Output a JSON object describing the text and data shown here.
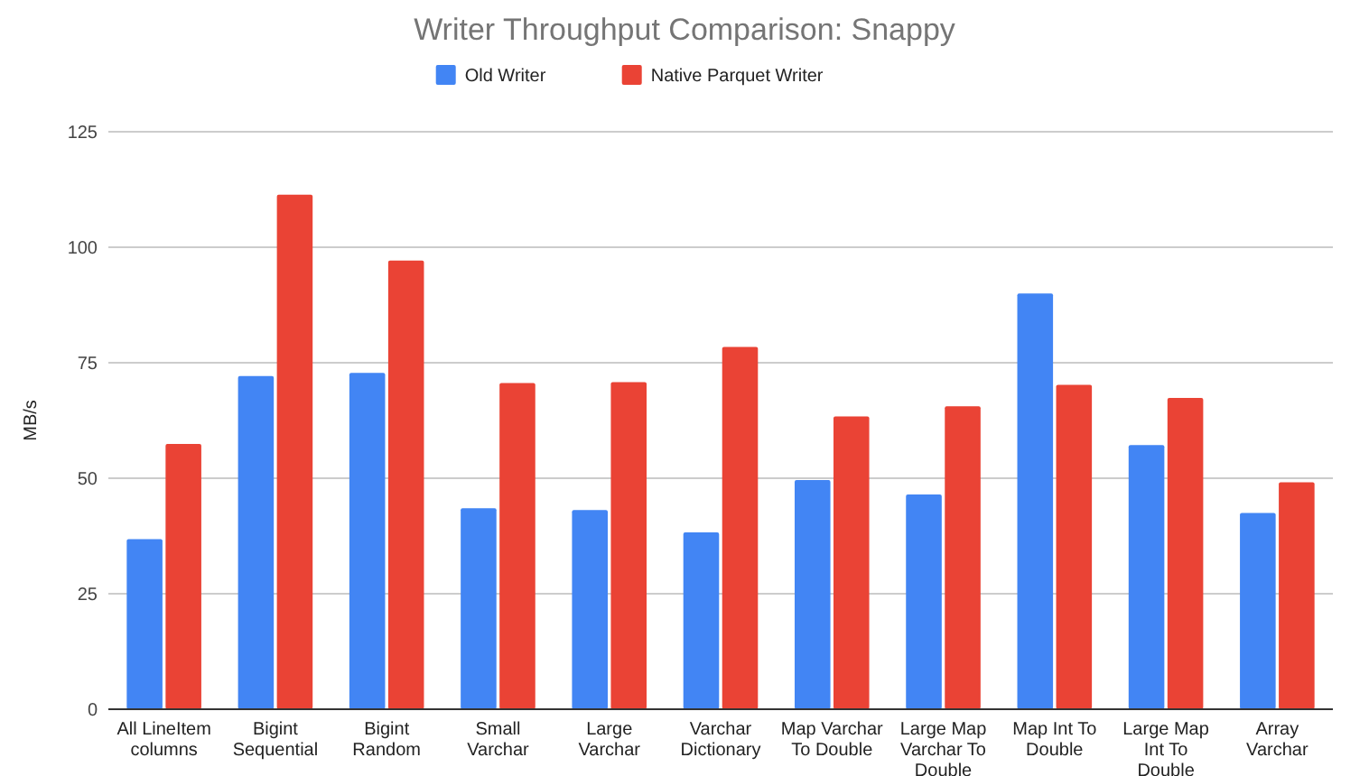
{
  "chart_data": {
    "type": "bar",
    "title": "Writer Throughput Comparison: Snappy",
    "ylabel": "MB/s",
    "categories": [
      "All LineItem columns",
      "Bigint Sequential",
      "Bigint Random",
      "Small Varchar",
      "Large Varchar",
      "Varchar Dictionary",
      "Map Varchar To Double",
      "Large Map Varchar To Double",
      "Map Int To Double",
      "Large Map Int To Double",
      "Array Varchar"
    ],
    "series": [
      {
        "name": "Old Writer",
        "color": "#4285f4",
        "values": [
          36.8,
          72.1,
          72.8,
          43.5,
          43.1,
          38.3,
          49.6,
          46.5,
          90,
          57.2,
          42.5
        ]
      },
      {
        "name": "Native Parquet Writer",
        "color": "#ea4335",
        "values": [
          57.4,
          111.4,
          97.1,
          70.6,
          70.8,
          78.4,
          63.4,
          65.6,
          70.2,
          67.4,
          49.1
        ]
      }
    ],
    "ylim": [
      0,
      125
    ],
    "yticks": [
      0,
      25,
      50,
      75,
      100,
      125
    ],
    "grid": "y",
    "legend": "top"
  }
}
